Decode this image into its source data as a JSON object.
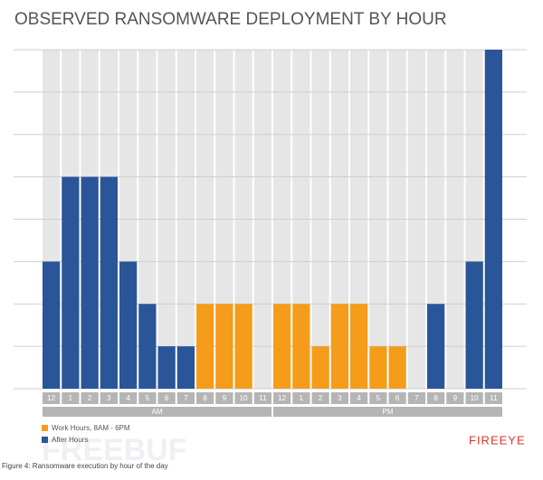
{
  "chart_data": {
    "type": "bar",
    "title": "OBSERVED RANSOMWARE DEPLOYMENT BY HOUR",
    "categories": [
      "12",
      "1",
      "2",
      "3",
      "4",
      "5",
      "6",
      "7",
      "8",
      "9",
      "10",
      "11",
      "12",
      "1",
      "2",
      "3",
      "4",
      "5",
      "6",
      "7",
      "8",
      "9",
      "10",
      "11"
    ],
    "groups": [
      "AM",
      "PM"
    ],
    "series": [
      {
        "name": "Work Hours, 8AM - 6PM",
        "color": "#f59c1a",
        "values": [
          null,
          null,
          null,
          null,
          null,
          null,
          null,
          null,
          2,
          2,
          2,
          0,
          2,
          2,
          1,
          2,
          2,
          1,
          1,
          null,
          null,
          null,
          null,
          null
        ]
      },
      {
        "name": "After Hours",
        "color": "#2a5599",
        "values": [
          3,
          5,
          5,
          5,
          3,
          2,
          1,
          1,
          null,
          null,
          null,
          null,
          null,
          null,
          null,
          null,
          null,
          null,
          null,
          0,
          2,
          0,
          3,
          8
        ]
      }
    ],
    "ylim": [
      0,
      8
    ],
    "yticks": [
      0,
      1,
      2,
      3,
      4,
      5,
      6,
      7,
      8
    ],
    "grid": true,
    "caption": "Figure 4: Ransomware execution by hour of the day",
    "logo": "FIREEYE",
    "watermark": "FREEBUF"
  }
}
